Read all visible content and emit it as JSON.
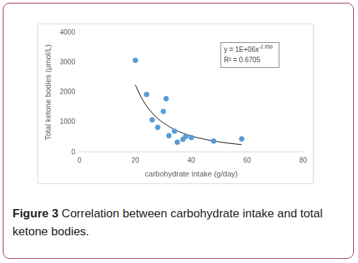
{
  "chart_data": {
    "type": "scatter",
    "x_label": "carbohydrate intake (g/day)",
    "y_label": "Total ketone bodies (μmol/L)",
    "x": [
      20,
      24,
      26,
      28,
      30,
      31,
      32,
      34,
      35,
      37,
      38,
      40,
      48,
      58
    ],
    "values": [
      3070,
      1930,
      1080,
      830,
      1360,
      1790,
      550,
      700,
      330,
      430,
      520,
      490,
      370,
      440
    ],
    "color": "#5b9bd5",
    "marker": "circle",
    "trendline": {
      "x": [
        20,
        22,
        24,
        26,
        28,
        30,
        33,
        36,
        40,
        44,
        48,
        53,
        58
      ],
      "values": [
        2250,
        1850,
        1546,
        1313,
        1126,
        978,
        803,
        672,
        541,
        445,
        372,
        303,
        252
      ],
      "color": "#000000",
      "line_style": "solid"
    },
    "equation": {
      "text": "y = 1E+06x",
      "superscript": "-2.056"
    },
    "r_squared": "R² = 0.6705",
    "xlim": [
      0,
      80
    ],
    "xticks": [
      0,
      20,
      40,
      60,
      80
    ],
    "ylim": [
      0,
      4000
    ],
    "yticks": [
      0,
      1000,
      2000,
      3000,
      4000
    ],
    "grid": false
  },
  "caption": {
    "label": "Figure 3",
    "text": "Correlation between carbohydrate intake and total ketone bodies."
  }
}
